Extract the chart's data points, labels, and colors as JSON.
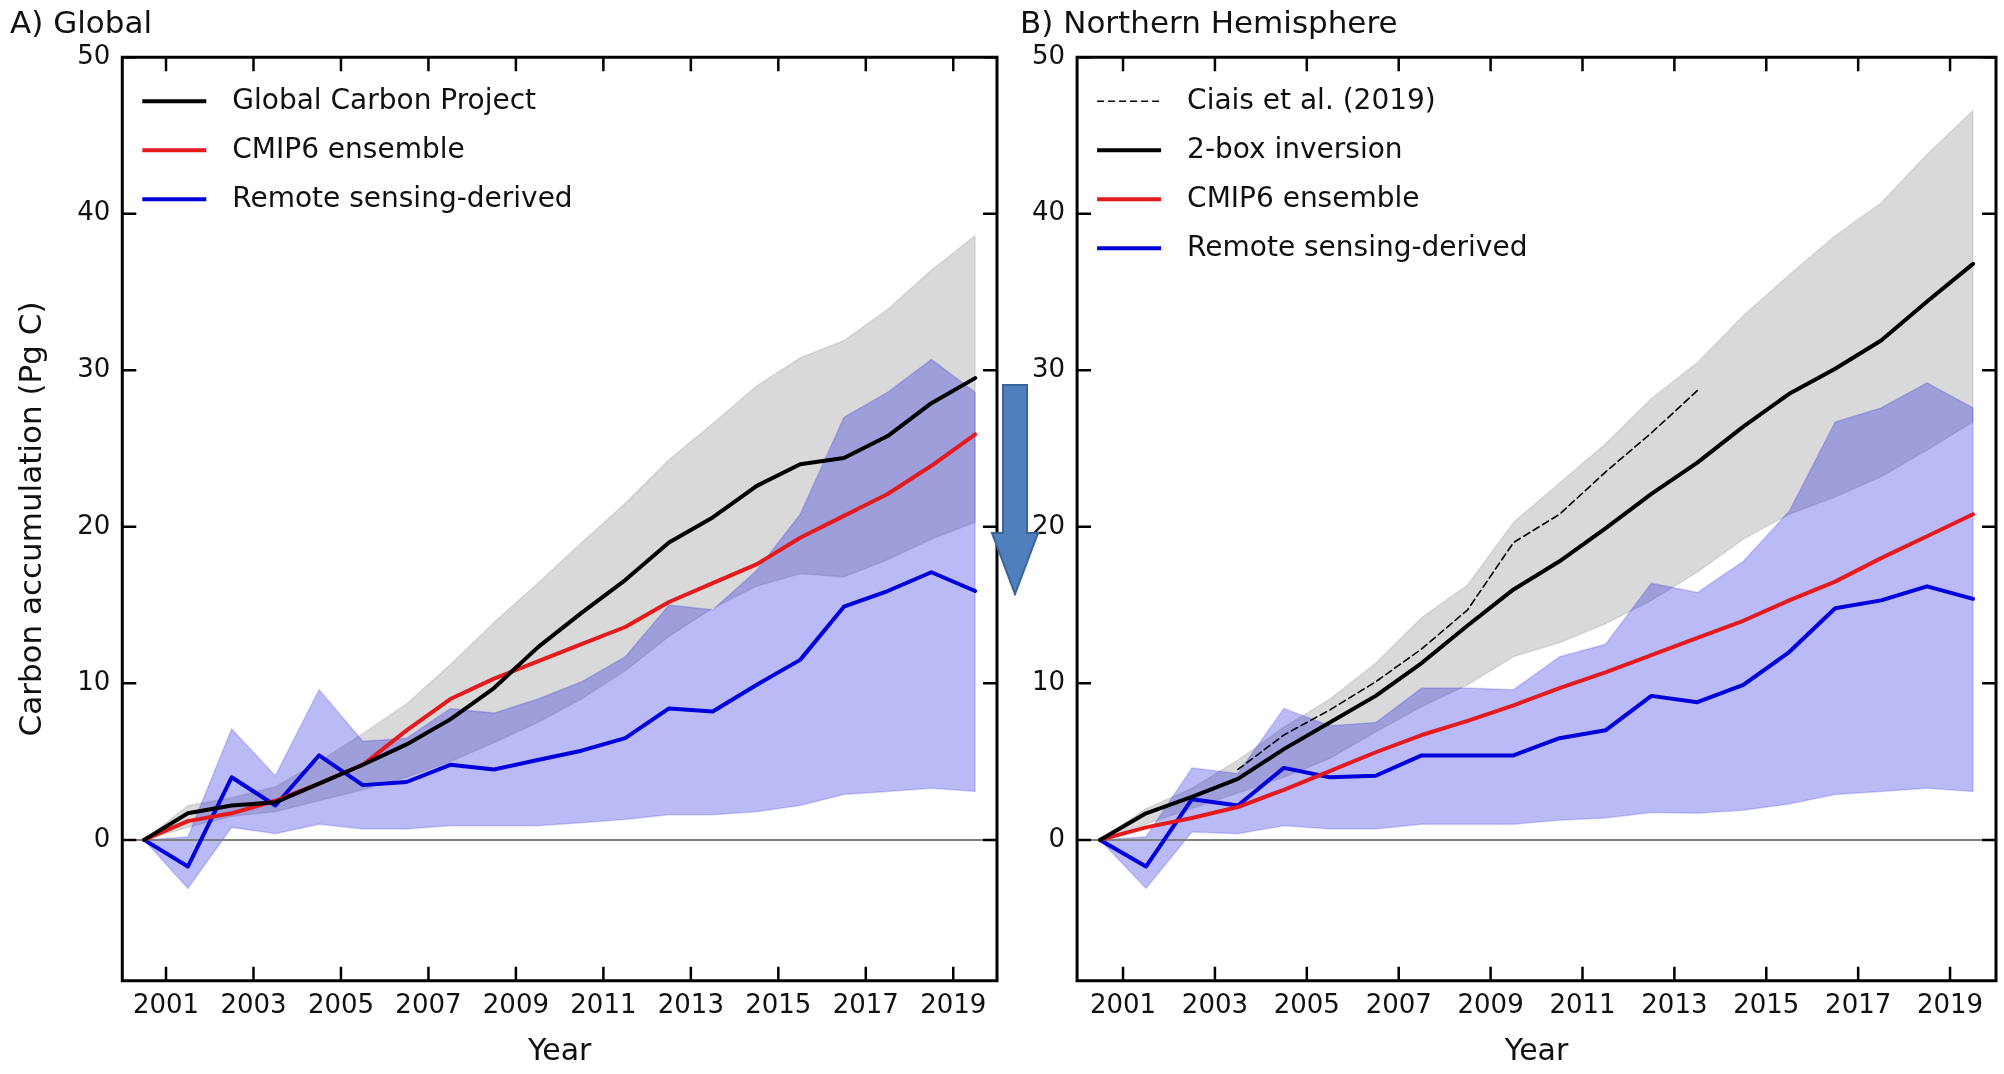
{
  "chart_data": [
    {
      "type": "line",
      "title": "A) Global",
      "xlabel": "Year",
      "ylabel": "Carbon accumulation (Pg C)",
      "x": [
        2000.5,
        2001.5,
        2002.5,
        2003.5,
        2004.5,
        2005.5,
        2006.5,
        2007.5,
        2008.5,
        2009.5,
        2010.5,
        2011.5,
        2012.5,
        2013.5,
        2014.5,
        2015.5,
        2016.5,
        2017.5,
        2018.5,
        2019.5
      ],
      "xlim": [
        2000,
        2020
      ],
      "xticks": [
        2001,
        2003,
        2005,
        2007,
        2009,
        2011,
        2013,
        2015,
        2017,
        2019
      ],
      "ylim": [
        -9,
        50
      ],
      "yticks": [
        0,
        10,
        20,
        30,
        40,
        50
      ],
      "grid": false,
      "legend": "top left",
      "ref_lines": [
        {
          "axis": "y",
          "value": 0,
          "color": "#808080"
        }
      ],
      "series": [
        {
          "name": "Global Carbon Project",
          "color": "#000000",
          "line_style": "solid",
          "values": [
            0,
            1.7,
            2.2,
            2.4,
            3.6,
            4.8,
            6.1,
            7.7,
            9.7,
            12.3,
            14.5,
            16.6,
            19.0,
            20.6,
            22.6,
            24.0,
            24.4,
            25.8,
            27.9,
            29.5
          ],
          "lower": [
            0,
            0.8,
            1.5,
            1.8,
            2.5,
            3.2,
            4.0,
            5.0,
            6.2,
            7.5,
            9.0,
            10.8,
            13.0,
            14.8,
            16.2,
            17.0,
            16.8,
            17.9,
            19.2,
            20.3
          ],
          "upper": [
            0,
            2.2,
            2.7,
            3.4,
            5.0,
            6.8,
            8.7,
            11.2,
            13.9,
            16.4,
            19.0,
            21.5,
            24.3,
            26.6,
            29.0,
            30.8,
            31.9,
            33.9,
            36.4,
            38.6
          ]
        },
        {
          "name": "CMIP6 ensemble",
          "color": "#e41a1c",
          "line_style": "solid",
          "values": [
            0,
            1.2,
            1.7,
            2.5,
            3.6,
            4.8,
            7.0,
            9.0,
            10.3,
            11.4,
            12.5,
            13.6,
            15.2,
            16.4,
            17.6,
            19.3,
            20.7,
            22.1,
            23.9,
            25.9
          ]
        },
        {
          "name": "Remote sensing-derived",
          "color": "#0000dd",
          "line_style": "solid",
          "values": [
            0,
            -1.7,
            4.0,
            2.2,
            5.4,
            3.5,
            3.7,
            4.8,
            4.5,
            5.1,
            5.7,
            6.5,
            8.4,
            8.2,
            9.9,
            11.5,
            14.9,
            15.9,
            17.1,
            15.9
          ],
          "lower": [
            0,
            -3.1,
            0.8,
            0.4,
            1.0,
            0.7,
            0.7,
            0.9,
            0.9,
            0.9,
            1.1,
            1.3,
            1.6,
            1.6,
            1.8,
            2.2,
            2.9,
            3.1,
            3.3,
            3.1
          ],
          "upper": [
            0,
            0.2,
            7.1,
            4.1,
            9.6,
            6.3,
            6.5,
            8.4,
            8.1,
            9.0,
            10.1,
            11.7,
            15.0,
            14.7,
            17.2,
            20.8,
            27.0,
            28.6,
            30.7,
            28.6
          ]
        }
      ]
    },
    {
      "type": "line",
      "title": "B) Northern Hemisphere",
      "xlabel": "Year",
      "x": [
        2000.5,
        2001.5,
        2002.5,
        2003.5,
        2004.5,
        2005.5,
        2006.5,
        2007.5,
        2008.5,
        2009.5,
        2010.5,
        2011.5,
        2012.5,
        2013.5,
        2014.5,
        2015.5,
        2016.5,
        2017.5,
        2018.5,
        2019.5
      ],
      "xlim": [
        2000,
        2020
      ],
      "xticks": [
        2001,
        2003,
        2005,
        2007,
        2009,
        2011,
        2013,
        2015,
        2017,
        2019
      ],
      "ylim": [
        -9,
        50
      ],
      "yticks": [
        0,
        10,
        20,
        30,
        40,
        50
      ],
      "grid": false,
      "legend": "top left",
      "ref_lines": [
        {
          "axis": "y",
          "value": 0,
          "color": "#808080"
        }
      ],
      "series": [
        {
          "name": "Ciais et al. (2019)",
          "color": "#000000",
          "line_style": "dashed",
          "x": [
            2003.5,
            2004.5,
            2005.5,
            2006.5,
            2007.5,
            2008.5,
            2009.5,
            2010.5,
            2011.5,
            2012.5,
            2013.5
          ],
          "values": [
            4.5,
            6.7,
            8.3,
            10.1,
            12.2,
            14.7,
            19.0,
            20.8,
            23.5,
            26.0,
            28.7
          ]
        },
        {
          "name": "2-box inversion",
          "color": "#000000",
          "line_style": "solid",
          "values": [
            0,
            1.7,
            2.75,
            3.9,
            5.8,
            7.5,
            9.2,
            11.3,
            13.7,
            16.0,
            17.8,
            19.9,
            22.1,
            24.1,
            26.4,
            28.5,
            30.1,
            31.9,
            34.4,
            36.8
          ],
          "lower": [
            0,
            1.0,
            2.0,
            3.0,
            4.0,
            5.2,
            6.9,
            8.5,
            9.9,
            11.7,
            12.6,
            13.8,
            15.3,
            17.1,
            19.2,
            20.8,
            21.9,
            23.2,
            24.9,
            26.7
          ],
          "upper": [
            0,
            2.0,
            3.3,
            5.1,
            7.2,
            9.0,
            11.3,
            14.2,
            16.3,
            20.3,
            22.8,
            25.3,
            28.2,
            30.5,
            33.5,
            36.1,
            38.6,
            40.7,
            43.8,
            46.6
          ]
        },
        {
          "name": "CMIP6 ensemble",
          "color": "#e41a1c",
          "line_style": "solid",
          "values": [
            0,
            0.8,
            1.4,
            2.1,
            3.2,
            4.4,
            5.6,
            6.7,
            7.6,
            8.6,
            9.7,
            10.7,
            11.8,
            12.9,
            14.0,
            15.3,
            16.5,
            18.0,
            19.4,
            20.8
          ]
        },
        {
          "name": "Remote sensing-derived",
          "color": "#0000dd",
          "line_style": "solid",
          "values": [
            0,
            -1.7,
            2.6,
            2.2,
            4.6,
            4.0,
            4.1,
            5.4,
            5.4,
            5.4,
            6.5,
            7.0,
            9.2,
            8.8,
            9.9,
            12.0,
            14.8,
            15.3,
            16.2,
            15.4
          ],
          "lower": [
            0,
            -3.1,
            0.5,
            0.4,
            0.9,
            0.7,
            0.7,
            1.0,
            1.0,
            1.0,
            1.25,
            1.4,
            1.75,
            1.7,
            1.9,
            2.3,
            2.9,
            3.1,
            3.3,
            3.1
          ],
          "upper": [
            0,
            0.2,
            4.6,
            4.25,
            8.4,
            7.3,
            7.5,
            9.7,
            9.7,
            9.6,
            11.7,
            12.5,
            16.4,
            15.8,
            17.8,
            21.0,
            26.7,
            27.6,
            29.2,
            27.6
          ]
        }
      ]
    }
  ]
}
